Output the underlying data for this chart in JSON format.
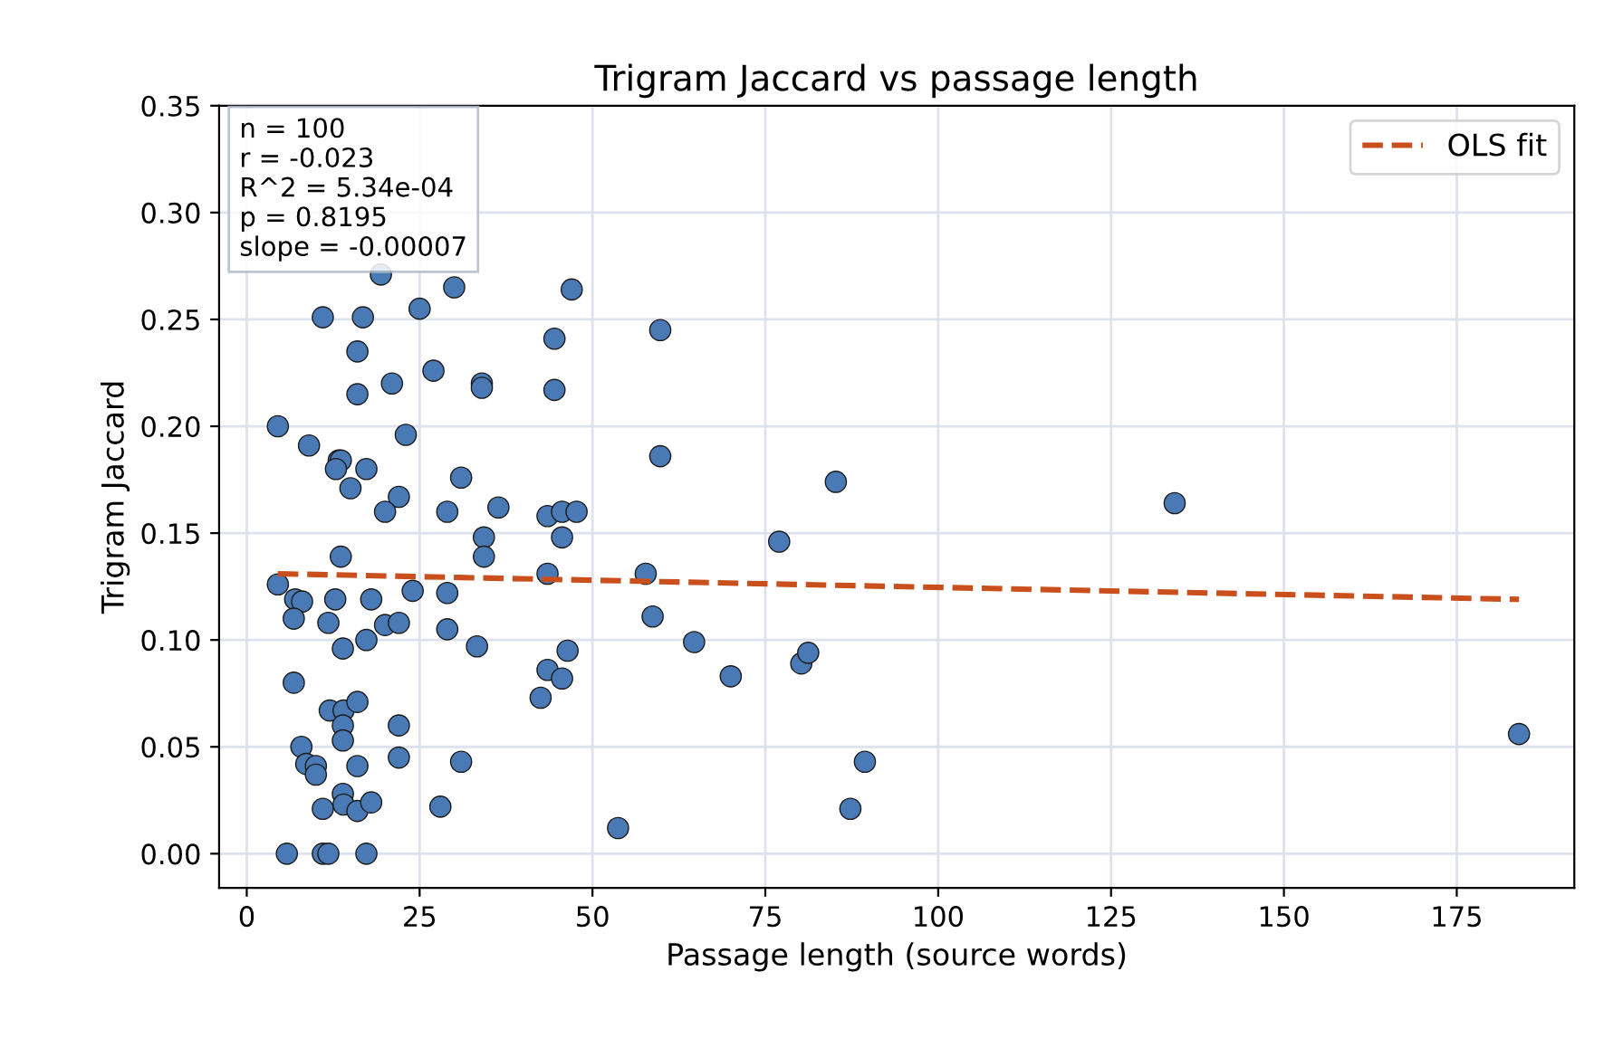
{
  "chart_data": {
    "type": "scatter",
    "title": "Trigram Jaccard vs passage length",
    "xlabel": "Passage length (source words)",
    "ylabel": "Trigram Jaccard",
    "annotations": [
      "n = 100\nr = -0.023\nR^2 = 5.34e-04\np = 0.8195\nslope = -0.00007"
    ],
    "xlim": [
      -4,
      192
    ],
    "xticks": [
      0,
      25,
      50,
      75,
      100,
      125,
      150,
      175
    ],
    "ylim": [
      -0.016,
      0.35
    ],
    "yticks": [
      {
        "value": 0,
        "label": "0.00"
      },
      {
        "value": 0.05,
        "label": "0.05"
      },
      {
        "value": 0.1,
        "label": "0.10"
      },
      {
        "value": 0.15,
        "label": "0.15"
      },
      {
        "value": 0.2,
        "label": "0.20"
      },
      {
        "value": 0.25,
        "label": "0.25"
      },
      {
        "value": 0.3,
        "label": "0.30"
      },
      {
        "value": 0.35,
        "label": "0.35"
      }
    ],
    "grid": true,
    "legend": "top right",
    "series": [
      {
        "color": "#4a7ab5",
        "marker": "circle",
        "x": [
          4.5,
          9,
          13.3,
          13.6,
          12.9,
          17.3,
          15,
          22,
          20,
          31,
          29,
          36.4,
          43.5,
          45.6,
          47.7,
          45.6,
          34.3,
          34.3,
          13.6,
          4.5,
          7,
          8,
          12.8,
          18,
          24,
          29,
          43.5,
          16,
          16,
          21,
          27,
          34,
          34,
          44.5,
          44.5,
          47,
          23,
          59.8,
          59.8,
          57.7,
          58.7,
          64.7,
          70,
          53.7,
          77,
          85.2,
          80.2,
          81.2,
          89.4,
          87.3,
          134.2,
          184,
          6.8,
          11.8,
          13.9,
          17.3,
          20,
          22,
          29,
          33.3,
          6.8,
          43.5,
          46.4,
          45.6,
          42.5,
          12,
          14,
          16,
          13.9,
          13.9,
          22,
          7.9,
          8.6,
          10,
          10,
          16,
          22,
          31,
          11,
          13.9,
          14,
          16,
          18,
          28,
          5.8,
          11,
          11.8,
          17.3,
          19.4,
          11,
          16.8,
          25,
          30
        ],
        "values": [
          0.2,
          0.191,
          0.184,
          0.184,
          0.18,
          0.18,
          0.171,
          0.167,
          0.16,
          0.176,
          0.16,
          0.162,
          0.158,
          0.16,
          0.16,
          0.148,
          0.148,
          0.139,
          0.139,
          0.126,
          0.119,
          0.118,
          0.119,
          0.119,
          0.123,
          0.122,
          0.131,
          0.235,
          0.215,
          0.22,
          0.226,
          0.22,
          0.218,
          0.241,
          0.217,
          0.264,
          0.196,
          0.245,
          0.186,
          0.131,
          0.111,
          0.099,
          0.083,
          0.012,
          0.146,
          0.174,
          0.089,
          0.094,
          0.043,
          0.021,
          0.164,
          0.056,
          0.11,
          0.108,
          0.096,
          0.1,
          0.107,
          0.108,
          0.105,
          0.097,
          0.08,
          0.086,
          0.095,
          0.082,
          0.073,
          0.067,
          0.067,
          0.071,
          0.06,
          0.053,
          0.06,
          0.05,
          0.042,
          0.041,
          0.037,
          0.041,
          0.045,
          0.043,
          0.021,
          0.028,
          0.023,
          0.02,
          0.024,
          0.022,
          0,
          0,
          0,
          0,
          0.271,
          0.251,
          0.251,
          0.255,
          0.265
        ]
      },
      {
        "type": "line",
        "name": "OLS fit",
        "color": "#c9501c",
        "line_style": "dashed",
        "marker": "none",
        "x": [
          4.5,
          184
        ],
        "values": [
          0.131,
          0.119
        ]
      }
    ]
  }
}
